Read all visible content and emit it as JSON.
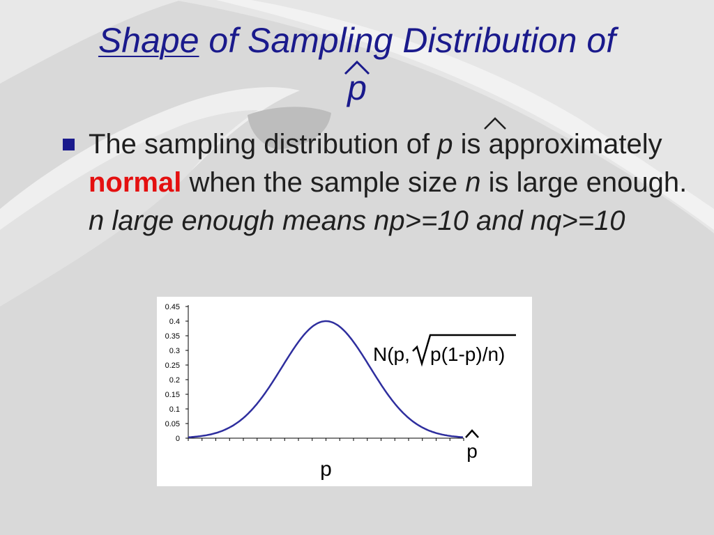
{
  "title": {
    "underlined_word": "Shape",
    "rest_line1": " of Sampling Distribution of",
    "line2_symbol": "p"
  },
  "bullet": {
    "part1": "The sampling distribution of ",
    "symbol": "p",
    "part2": " is approximately ",
    "emphasis": "normal",
    "part3": " when the sample size ",
    "n": "n",
    "part4": " is large enough.  ",
    "italic_tail": "n large enough means np>=10 and nq>=10"
  },
  "chart_data": {
    "type": "line",
    "yticks": [
      "0.45",
      "0.4",
      "0.35",
      "0.3",
      "0.25",
      "0.2",
      "0.15",
      "0.1",
      "0.05",
      "0"
    ],
    "ylim": [
      0,
      0.45
    ],
    "x_center_label": "p",
    "x_end_label": "p",
    "formula": {
      "prefix": "N(p,",
      "radicand": "p(1-p)/n)"
    },
    "curve": {
      "peak": 0.4,
      "sd_fraction_of_half_width": 0.32
    },
    "colors": {
      "curve": "#2e2e9e",
      "axis": "#000000"
    }
  },
  "colors": {
    "title": "#1a1a8c",
    "emphasis": "#e41010",
    "text": "#1f1f1f"
  }
}
